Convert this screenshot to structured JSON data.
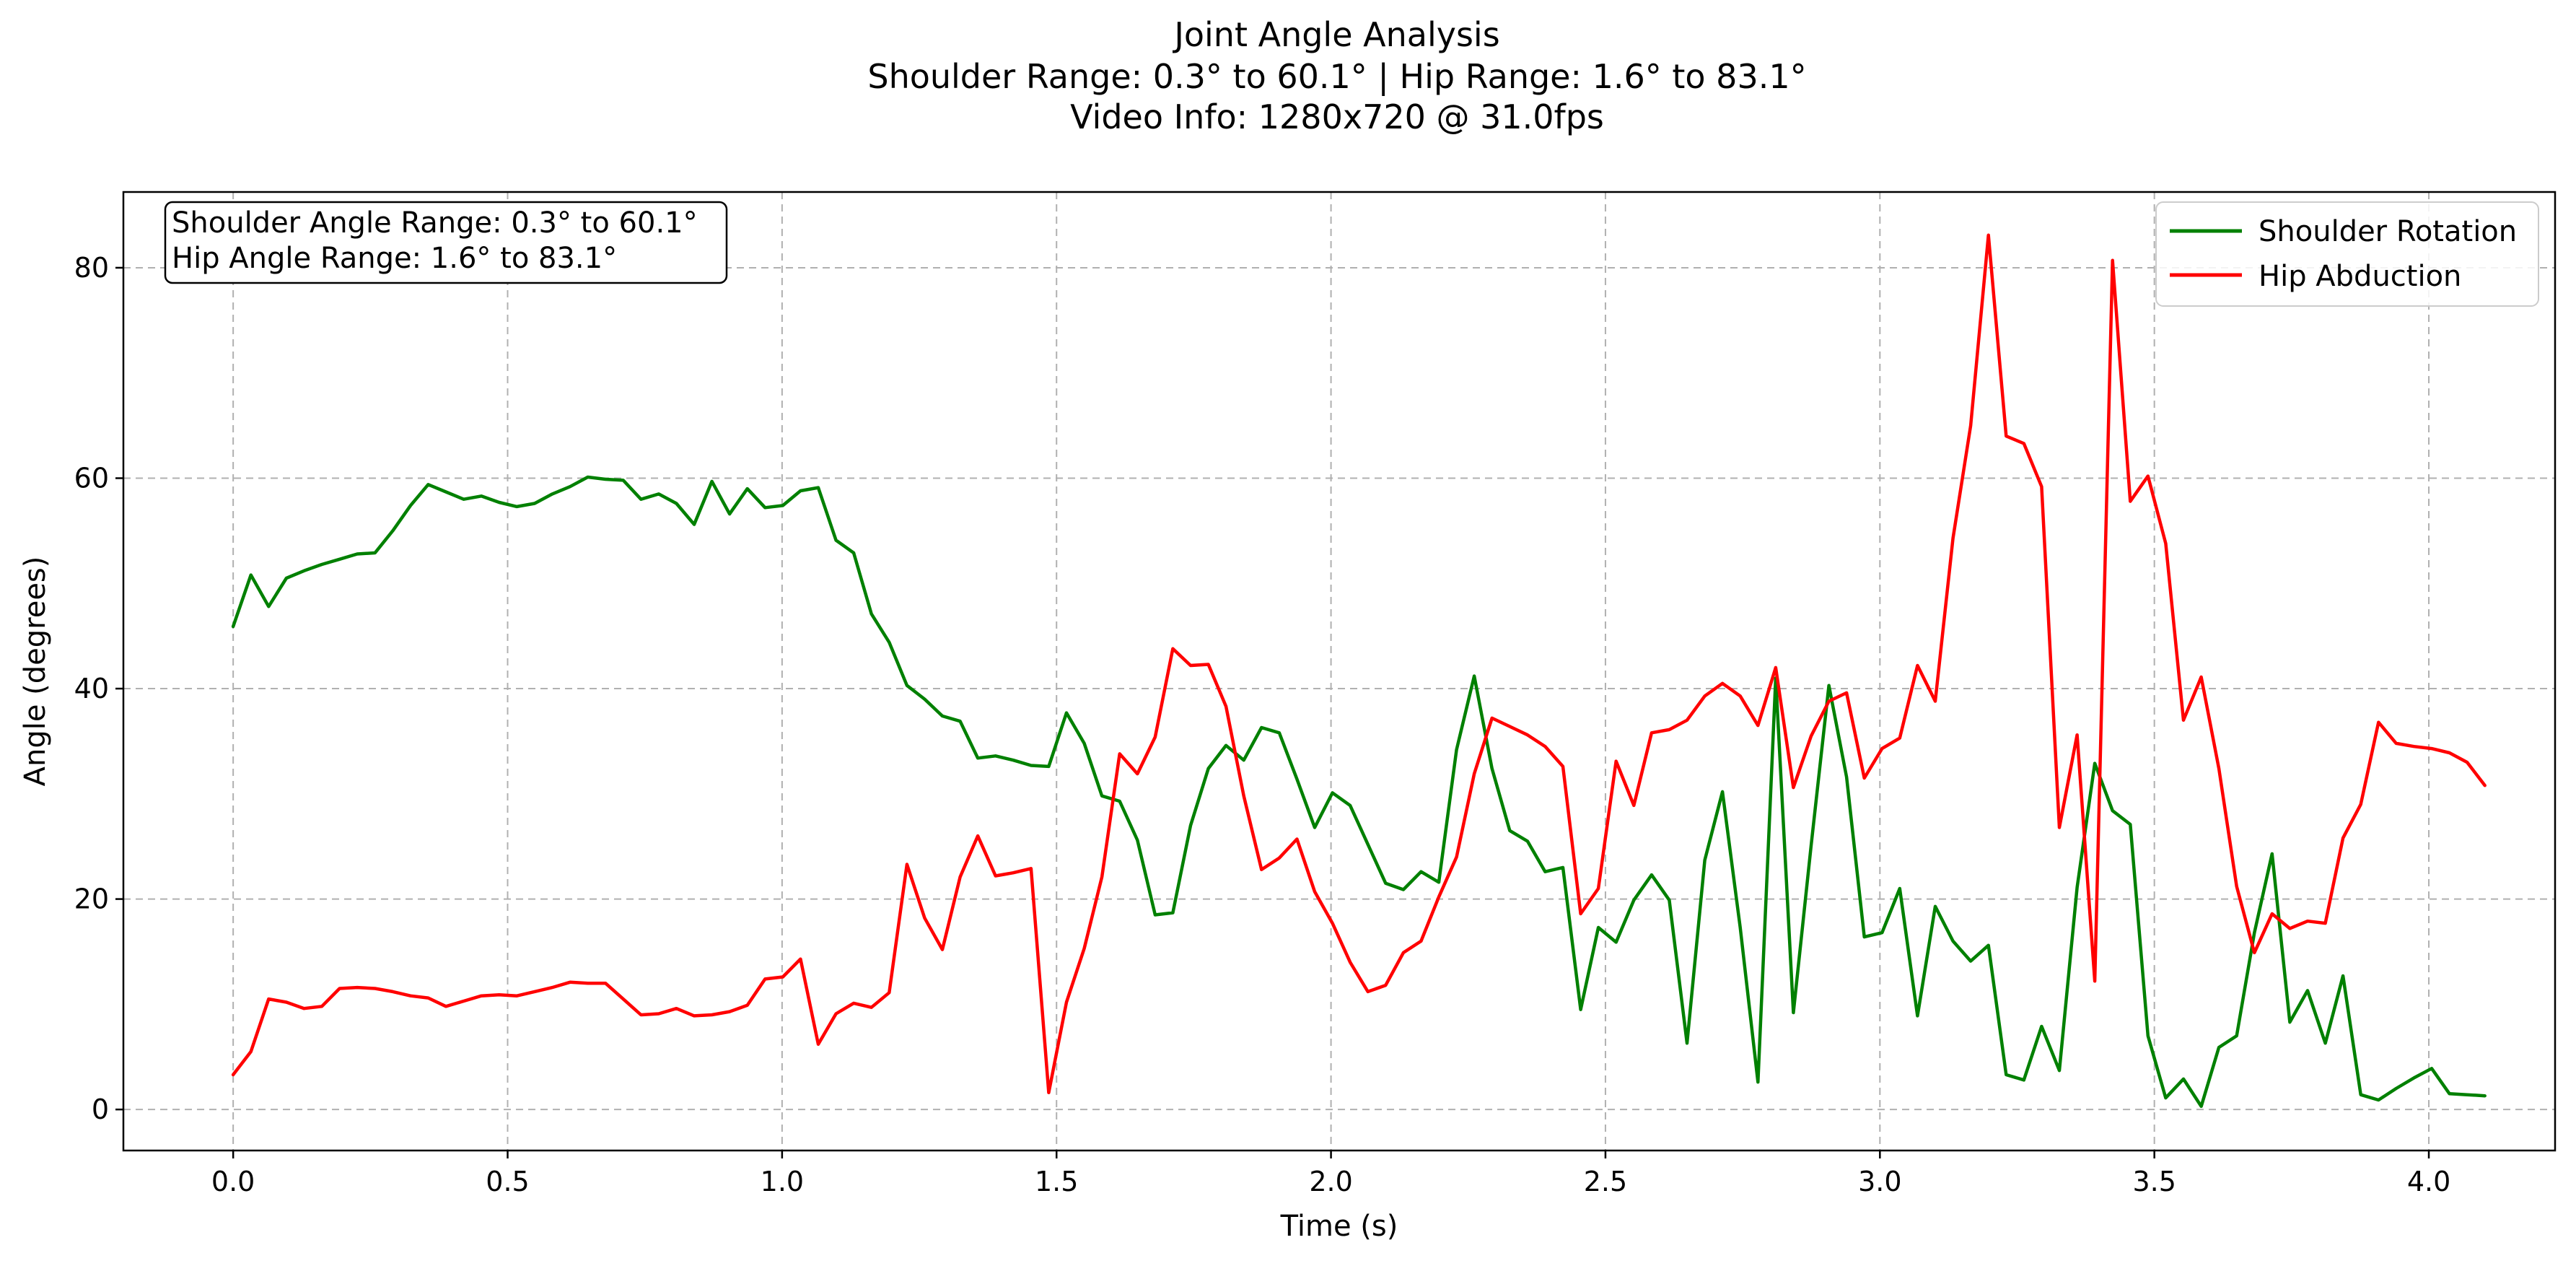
{
  "chart_data": {
    "type": "line",
    "title_lines": [
      "Joint Angle Analysis",
      "Shoulder Range: 0.3° to 60.1° | Hip Range: 1.6° to 83.1°",
      "Video Info: 1280x720 @ 31.0fps"
    ],
    "xlabel": "Time (s)",
    "ylabel": "Angle (degrees)",
    "xlim": [
      -0.2,
      4.23
    ],
    "ylim": [
      -3.9,
      87.2
    ],
    "xticks": [
      0.0,
      0.5,
      1.0,
      1.5,
      2.0,
      2.5,
      3.0,
      3.5,
      4.0
    ],
    "xtick_labels": [
      "0.0",
      "0.5",
      "1.0",
      "1.5",
      "2.0",
      "2.5",
      "3.0",
      "3.5",
      "4.0"
    ],
    "yticks": [
      0,
      20,
      40,
      60,
      80
    ],
    "ytick_labels": [
      "0",
      "20",
      "40",
      "60",
      "80"
    ],
    "grid": true,
    "legend_position": "top-right",
    "info_box": {
      "lines": [
        "Shoulder Angle Range: 0.3° to 60.1°",
        "Hip Angle Range: 1.6° to 83.1°"
      ],
      "position": "top-left"
    },
    "x_step": 0.0323,
    "series": [
      {
        "name": "Shoulder Rotation",
        "color": "#008000",
        "values": [
          45.9,
          50.8,
          47.8,
          50.5,
          51.2,
          51.8,
          52.3,
          52.8,
          52.9,
          55.0,
          57.4,
          59.4,
          58.7,
          58.0,
          58.3,
          57.7,
          57.3,
          57.6,
          58.5,
          59.2,
          60.1,
          59.9,
          59.8,
          58.0,
          58.5,
          57.6,
          55.6,
          59.7,
          56.6,
          59.0,
          57.2,
          57.4,
          58.8,
          59.1,
          54.1,
          52.9,
          47.1,
          44.4,
          40.3,
          39.0,
          37.4,
          36.9,
          33.4,
          33.6,
          33.2,
          32.7,
          32.6,
          37.7,
          34.8,
          29.8,
          29.3,
          25.6,
          18.5,
          18.7,
          27.0,
          32.4,
          34.6,
          33.2,
          36.3,
          35.8,
          31.4,
          26.8,
          30.1,
          28.9,
          25.2,
          21.5,
          20.9,
          22.6,
          21.6,
          34.2,
          41.2,
          32.4,
          26.5,
          25.5,
          22.6,
          23.0,
          9.5,
          17.3,
          15.9,
          19.9,
          22.3,
          19.9,
          6.3,
          23.7,
          30.2,
          17.3,
          2.6,
          41.0,
          9.2,
          25.1,
          40.3,
          31.6,
          16.4,
          16.8,
          21.0,
          8.9,
          19.3,
          16.0,
          14.1,
          15.6,
          3.3,
          2.8,
          7.9,
          3.7,
          21.1,
          32.9,
          28.4,
          27.1,
          7.0,
          1.1,
          2.9,
          0.3,
          5.9,
          7.0,
          16.8,
          24.3,
          8.3,
          11.3,
          6.3,
          12.7,
          1.4,
          0.9,
          2.0,
          3.0,
          3.9,
          1.5,
          1.4,
          1.3
        ]
      },
      {
        "name": "Hip Abduction",
        "color": "#ff0000",
        "values": [
          3.3,
          5.5,
          10.5,
          10.2,
          9.6,
          9.8,
          11.5,
          11.6,
          11.5,
          11.2,
          10.8,
          10.6,
          9.8,
          10.3,
          10.8,
          10.9,
          10.8,
          11.2,
          11.6,
          12.1,
          12.0,
          12.0,
          10.5,
          9.0,
          9.1,
          9.6,
          8.9,
          9.0,
          9.3,
          9.9,
          12.4,
          12.6,
          14.3,
          6.2,
          9.1,
          10.1,
          9.7,
          11.1,
          23.3,
          18.2,
          15.2,
          22.1,
          26.0,
          22.2,
          22.5,
          22.9,
          1.6,
          10.2,
          15.3,
          22.1,
          33.8,
          31.9,
          35.4,
          43.8,
          42.2,
          42.3,
          38.3,
          29.8,
          22.8,
          23.9,
          25.7,
          20.7,
          17.7,
          14.0,
          11.2,
          11.8,
          14.9,
          16.0,
          20.2,
          24.0,
          31.9,
          37.2,
          36.4,
          35.6,
          34.5,
          32.6,
          18.6,
          21.0,
          33.1,
          28.9,
          35.8,
          36.1,
          37.0,
          39.3,
          40.5,
          39.3,
          36.5,
          42.0,
          30.6,
          35.5,
          38.8,
          39.6,
          31.5,
          34.3,
          35.3,
          42.2,
          38.8,
          54.3,
          65.0,
          83.1,
          64.0,
          63.3,
          59.2,
          26.8,
          35.6,
          12.2,
          80.7,
          57.8,
          60.2,
          53.8,
          37.0,
          41.1,
          32.4,
          21.2,
          14.9,
          18.6,
          17.2,
          17.9,
          17.7,
          25.8,
          29.0,
          36.8,
          34.8,
          34.5,
          34.3,
          33.9,
          33.0,
          30.8
        ]
      }
    ]
  }
}
